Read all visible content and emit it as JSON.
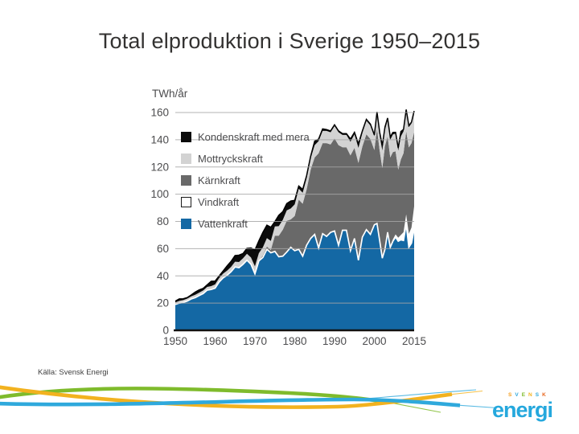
{
  "slide": {
    "title": "Total elproduktion i Sverige 1950–2015",
    "source": "Källa: Svensk Energi"
  },
  "logo": {
    "top_text": "SVENSK",
    "top_letter_colors": [
      "#f59c1b",
      "#2fa9dc",
      "#7fbb2c",
      "#f2b21f",
      "#2fa9dc",
      "#e8641b"
    ],
    "main_text": "energi",
    "main_color": "#25a8dd"
  },
  "brand": {
    "swoosh_green": "#7fbb2c",
    "swoosh_yellow": "#f2b21f",
    "swoosh_blue": "#2fa9dc"
  },
  "chart_data": {
    "type": "area",
    "stacked": true,
    "ylabel": "TWh/år",
    "ylim": [
      0,
      160
    ],
    "yticks": [
      0,
      20,
      40,
      60,
      80,
      100,
      120,
      140,
      160
    ],
    "xtick_years": [
      1950,
      1960,
      1970,
      1980,
      1990,
      2000,
      2015
    ],
    "xtick_labels": [
      "1950",
      "1960",
      "1970",
      "1980",
      "1990",
      "2000",
      "2015"
    ],
    "x_from": 1950,
    "x_to": 2015,
    "x_step": 1,
    "x_scale": "years after 2000 compressed; 2015 label at right edge",
    "grid": "horizontal",
    "legend_position": "upper-left-inside",
    "axis_text_color": "#4c4c4e",
    "gridline_color": "#a6a6a6",
    "series": [
      {
        "name": "Vattenkraft",
        "color": "#1468a4",
        "values": [
          19,
          20,
          20.5,
          21.5,
          23,
          24,
          25.5,
          27,
          29.5,
          30,
          31,
          35.5,
          38.5,
          40.5,
          43,
          46.5,
          46,
          48.5,
          51.5,
          48.5,
          41.5,
          51,
          53.5,
          59.5,
          57,
          58,
          54,
          54.5,
          57.5,
          61,
          58.5,
          59.5,
          54.5,
          62.5,
          67.5,
          70.5,
          60.5,
          71,
          69,
          72,
          73,
          62.5,
          73.5,
          73.5,
          58.5,
          67.5,
          51.5,
          68.5,
          74,
          70.5,
          77.5,
          78.5,
          66,
          53,
          59.5,
          72,
          61,
          65.5,
          68.5,
          65.5,
          66.5,
          66,
          78,
          61,
          64,
          74.5
        ]
      },
      {
        "name": "Vindkraft",
        "color": "#ffffff",
        "outlined": true,
        "values": [
          0,
          0,
          0,
          0,
          0,
          0,
          0,
          0,
          0,
          0,
          0,
          0,
          0,
          0,
          0,
          0,
          0,
          0,
          0,
          0,
          0,
          0,
          0,
          0,
          0,
          0,
          0,
          0,
          0,
          0,
          0,
          0,
          0,
          0,
          0,
          0,
          0,
          0,
          0,
          0,
          0,
          0,
          0,
          0,
          0,
          0,
          0,
          0,
          0,
          0,
          0.5,
          0.5,
          0.6,
          0.7,
          0.9,
          0.9,
          1,
          1.4,
          2,
          2.5,
          3.5,
          6.1,
          7.2,
          9.9,
          11.5,
          16.6
        ]
      },
      {
        "name": "Kärnkraft",
        "color": "#696969",
        "values": [
          0,
          0,
          0,
          0,
          0,
          0,
          0,
          0,
          0,
          0,
          0,
          0,
          0,
          0,
          0,
          0,
          0,
          0,
          0,
          0,
          0,
          0,
          1.5,
          2,
          2,
          11.5,
          15.5,
          19.5,
          23,
          20.5,
          25.5,
          36.5,
          38.5,
          41,
          50.5,
          56.5,
          69.5,
          66.5,
          68.5,
          64.5,
          68,
          73.5,
          61,
          61,
          70,
          66.5,
          71.5,
          66.5,
          70,
          70,
          54.5,
          69,
          65.5,
          65.5,
          75,
          69.5,
          65,
          64,
          61,
          50,
          55.5,
          58,
          61,
          63.5,
          62,
          54.5
        ]
      },
      {
        "name": "Mottryckskraft",
        "color": "#d3d3d3",
        "values": [
          1.5,
          1.6,
          1.7,
          1.8,
          2,
          2.1,
          2.2,
          2.3,
          2.4,
          2.5,
          2.7,
          2.9,
          3.1,
          3.3,
          3.6,
          3.9,
          4.2,
          4.4,
          4.7,
          5,
          5.5,
          5.7,
          6,
          6.3,
          6.7,
          6.8,
          7,
          7.2,
          7.6,
          8,
          8.5,
          8,
          8,
          8.2,
          8.4,
          9,
          9,
          9,
          9,
          9,
          9,
          9.5,
          9,
          9,
          10,
          10,
          11,
          10,
          10,
          10,
          10,
          11,
          11,
          13,
          12,
          12,
          13,
          13,
          13,
          14,
          17,
          16,
          15,
          15,
          14.5,
          14.5
        ]
      },
      {
        "name": "Kondenskraft med mera",
        "color": "#0b0b0b",
        "values": [
          1,
          1.5,
          1,
          0.8,
          1,
          2,
          2,
          1.5,
          1.5,
          3.5,
          2.5,
          1.5,
          2,
          3.5,
          4,
          4.5,
          5,
          3.5,
          4,
          7,
          12,
          9,
          11,
          9.5,
          10,
          3.5,
          8,
          6,
          5,
          5.5,
          3,
          2,
          2.5,
          2,
          1.5,
          3,
          1.5,
          1.5,
          1,
          1,
          1,
          1,
          1,
          1,
          2,
          1.5,
          3,
          1.5,
          1,
          1,
          1,
          1.5,
          2.5,
          3.5,
          2,
          1.5,
          2,
          1.5,
          1,
          2,
          3.5,
          1.5,
          1,
          1,
          1,
          1
        ]
      }
    ]
  }
}
